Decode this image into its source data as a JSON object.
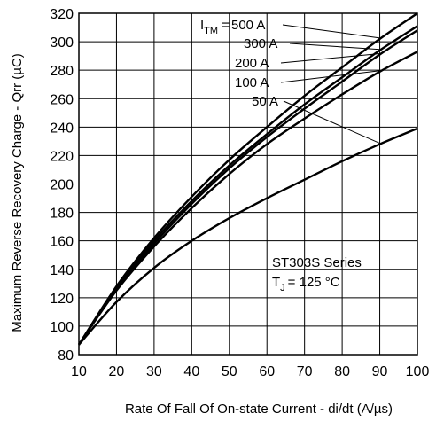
{
  "chart_data": {
    "type": "line",
    "xlabel": "Rate Of Fall Of On-state Current - di/dt (A/µs)",
    "ylabel": "Maximum Reverse Recovery Charge - Qrr (µC)",
    "xlim": [
      10,
      100
    ],
    "ylim": [
      80,
      320
    ],
    "xticks": [
      10,
      20,
      30,
      40,
      50,
      60,
      70,
      80,
      90,
      100
    ],
    "yticks": [
      80,
      100,
      120,
      140,
      160,
      180,
      200,
      220,
      240,
      260,
      280,
      300,
      320
    ],
    "grid": true,
    "x": [
      10,
      20,
      30,
      40,
      50,
      60,
      70,
      80,
      90,
      100
    ],
    "series": [
      {
        "name": "500 A",
        "values": [
          87,
          128,
          162,
          191,
          217,
          240,
          262,
          282,
          302,
          320
        ]
      },
      {
        "name": "300 A",
        "values": [
          87,
          127,
          160,
          188,
          213,
          235,
          256,
          275,
          294,
          311
        ]
      },
      {
        "name": "200 A",
        "values": [
          87,
          126,
          158,
          186,
          211,
          233,
          253,
          272,
          291,
          308
        ]
      },
      {
        "name": "100 A",
        "values": [
          87,
          125,
          156,
          183,
          207,
          228,
          246,
          263,
          279,
          293
        ]
      },
      {
        "name": "50 A",
        "values": [
          87,
          117,
          141,
          160,
          176,
          190,
          203,
          216,
          228,
          239
        ]
      }
    ],
    "annotations": {
      "legend_prefix": "I",
      "legend_sub": "TM",
      "legend_eq": " = ",
      "series_title": "ST303S Series",
      "tj_prefix": "T",
      "tj_sub": "J",
      "tj_value": "= 125 °C"
    }
  }
}
